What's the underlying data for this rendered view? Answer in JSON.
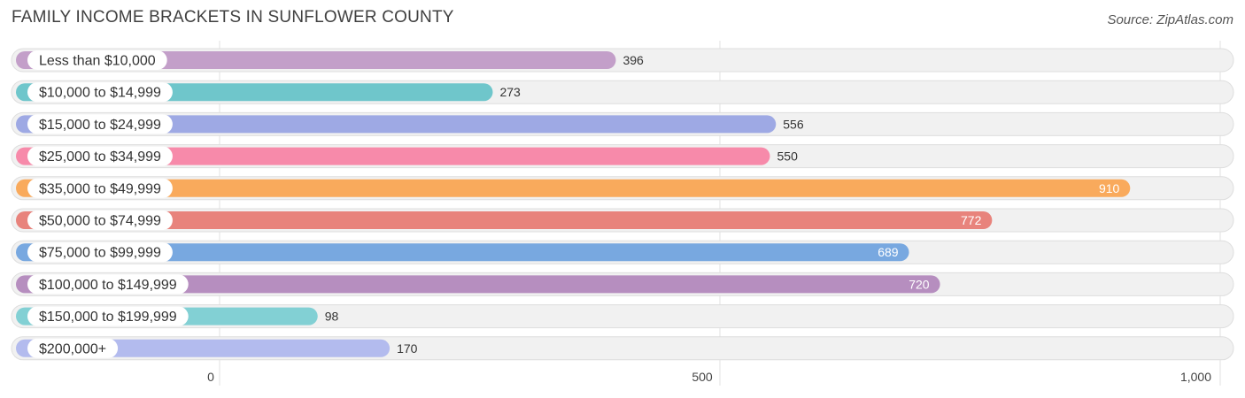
{
  "header": {
    "title": "FAMILY INCOME BRACKETS IN SUNFLOWER COUNTY",
    "source": "Source: ZipAtlas.com"
  },
  "chart_data": {
    "type": "bar",
    "orientation": "horizontal",
    "title": "FAMILY INCOME BRACKETS IN SUNFLOWER COUNTY",
    "xlabel": "",
    "ylabel": "",
    "xlim": [
      0,
      1000
    ],
    "ticks": [
      0,
      500,
      1000
    ],
    "tick_labels": [
      "0",
      "500",
      "1,000"
    ],
    "grid": true,
    "categories": [
      "Less than $10,000",
      "$10,000 to $14,999",
      "$15,000 to $24,999",
      "$25,000 to $34,999",
      "$35,000 to $49,999",
      "$50,000 to $74,999",
      "$75,000 to $99,999",
      "$100,000 to $149,999",
      "$150,000 to $199,999",
      "$200,000+"
    ],
    "values": [
      396,
      273,
      556,
      550,
      910,
      772,
      689,
      720,
      98,
      170
    ],
    "value_labels": [
      "396",
      "273",
      "556",
      "550",
      "910",
      "772",
      "689",
      "720",
      "98",
      "170"
    ],
    "colors": [
      "#c39fc9",
      "#6fc6cb",
      "#9ea9e4",
      "#f78aaa",
      "#f9aa5c",
      "#e8837c",
      "#78a8e0",
      "#b68ebf",
      "#82d0d4",
      "#b3bbee"
    ]
  }
}
